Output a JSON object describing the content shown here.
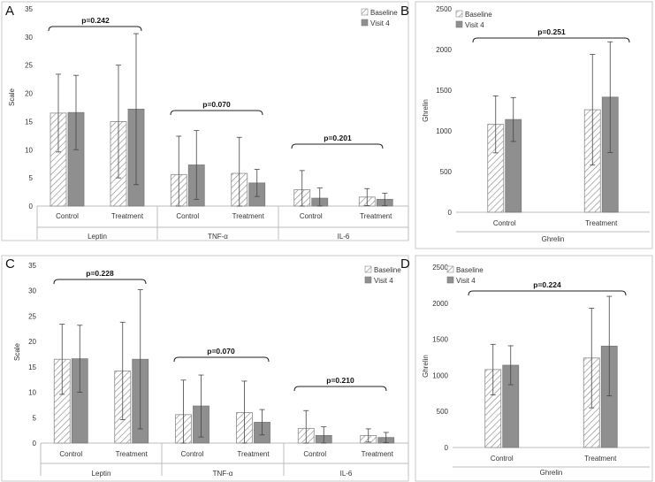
{
  "panels": [
    {
      "label": "A",
      "chart_data": {
        "type": "bar",
        "ylabel": "Scale",
        "ylim": [
          0,
          35
        ],
        "yticks": [
          0,
          5,
          10,
          15,
          20,
          25,
          30,
          35
        ],
        "groups": [
          "Leptin",
          "TNF-α",
          "IL-6"
        ],
        "categories": [
          "Control",
          "Treatment"
        ],
        "series": [
          {
            "name": "Baseline",
            "pattern": "hatched",
            "values": [
              [
                16.5,
                15.0
              ],
              [
                5.6,
                5.8
              ],
              [
                2.9,
                1.6
              ]
            ],
            "errors": [
              [
                6.9,
                10.0
              ],
              [
                6.8,
                6.4
              ],
              [
                3.4,
                1.5
              ]
            ]
          },
          {
            "name": "Visit 4",
            "pattern": "solid",
            "values": [
              [
                16.6,
                17.2
              ],
              [
                7.3,
                4.1
              ],
              [
                1.4,
                1.2
              ]
            ],
            "errors": [
              [
                6.6,
                13.4
              ],
              [
                6.1,
                2.4
              ],
              [
                1.8,
                1.1
              ]
            ]
          }
        ],
        "annotations": [
          "p=0.242",
          "p=0.070",
          "p=0.201"
        ]
      }
    },
    {
      "label": "B",
      "chart_data": {
        "type": "bar",
        "ylabel": "Ghrelin",
        "ylim": [
          0,
          2500
        ],
        "yticks": [
          0,
          500,
          1000,
          1500,
          2000,
          2500
        ],
        "groups": [
          "Ghrelin"
        ],
        "categories": [
          "Control",
          "Treatment"
        ],
        "series": [
          {
            "name": "Baseline",
            "pattern": "hatched",
            "values": [
              [
                1080,
                1260
              ]
            ],
            "errors": [
              [
                350,
                680
              ]
            ]
          },
          {
            "name": "Visit 4",
            "pattern": "solid",
            "values": [
              [
                1140,
                1415
              ]
            ],
            "errors": [
              [
                270,
                680
              ]
            ]
          }
        ],
        "annotations": [
          "p=0.251"
        ]
      }
    },
    {
      "label": "C",
      "chart_data": {
        "type": "bar",
        "ylabel": "Scale",
        "ylim": [
          0,
          35
        ],
        "yticks": [
          0,
          5,
          10,
          15,
          20,
          25,
          30,
          35
        ],
        "groups": [
          "Leptin",
          "TNF-α",
          "IL-6"
        ],
        "categories": [
          "Control",
          "Treatment"
        ],
        "series": [
          {
            "name": "Baseline",
            "pattern": "hatched",
            "values": [
              [
                16.5,
                14.2
              ],
              [
                5.6,
                6.0
              ],
              [
                2.9,
                1.5
              ]
            ],
            "errors": [
              [
                6.9,
                9.6
              ],
              [
                6.8,
                6.2
              ],
              [
                3.5,
                1.3
              ]
            ]
          },
          {
            "name": "Visit 4",
            "pattern": "solid",
            "values": [
              [
                16.6,
                16.5
              ],
              [
                7.3,
                4.1
              ],
              [
                1.5,
                1.1
              ]
            ],
            "errors": [
              [
                6.6,
                13.7
              ],
              [
                6.1,
                2.5
              ],
              [
                1.7,
                1.0
              ]
            ]
          }
        ],
        "annotations": [
          "p=0.228",
          "p=0.070",
          "p=0.210"
        ]
      }
    },
    {
      "label": "D",
      "chart_data": {
        "type": "bar",
        "ylabel": "Ghrelin",
        "ylim": [
          0,
          2500
        ],
        "yticks": [
          0,
          500,
          1000,
          1500,
          2000,
          2500
        ],
        "groups": [
          "Ghrelin"
        ],
        "categories": [
          "Control",
          "Treatment"
        ],
        "series": [
          {
            "name": "Baseline",
            "pattern": "hatched",
            "values": [
              [
                1080,
                1240
              ]
            ],
            "errors": [
              [
                350,
                690
              ]
            ]
          },
          {
            "name": "Visit 4",
            "pattern": "solid",
            "values": [
              [
                1140,
                1405
              ]
            ],
            "errors": [
              [
                270,
                690
              ]
            ]
          }
        ],
        "annotations": [
          "p=0.224"
        ]
      }
    }
  ]
}
